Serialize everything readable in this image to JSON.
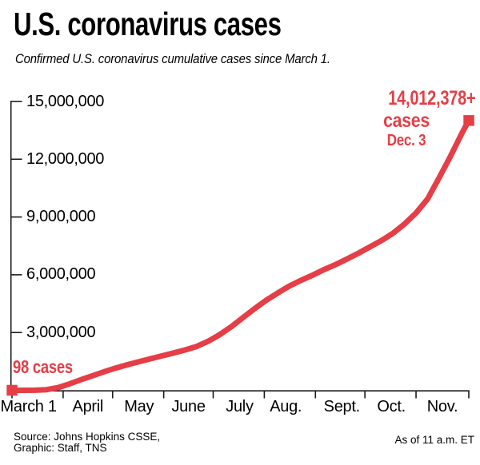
{
  "header": {
    "title": "U.S. coronavirus cases",
    "subtitle": "Confirmed U.S. coronavirus cumulative cases since March 1."
  },
  "chart_data": {
    "type": "line",
    "title": "U.S. coronavirus cases",
    "subtitle": "Confirmed U.S. coronavirus cumulative cases since March 1.",
    "line_color": "#E63E46",
    "axis_color": "#1A1A1A",
    "grid": false,
    "legend": "none",
    "ylim": [
      0,
      15000000
    ],
    "x_total_days": 277,
    "y_ticks": [
      {
        "value": 3000000,
        "label": "3,000,000"
      },
      {
        "value": 6000000,
        "label": "6,000,000"
      },
      {
        "value": 9000000,
        "label": "9,000,000"
      },
      {
        "value": 12000000,
        "label": "12,000,000"
      },
      {
        "value": 15000000,
        "label": "15,000,000"
      }
    ],
    "x_ticks": [
      {
        "label": "March 1",
        "tick_day": 0,
        "label_day": 10
      },
      {
        "label": "April",
        "tick_day": 31,
        "label_day": 46
      },
      {
        "label": "May",
        "tick_day": 61,
        "label_day": 77
      },
      {
        "label": "June",
        "tick_day": 92,
        "label_day": 107
      },
      {
        "label": "July",
        "tick_day": 122,
        "label_day": 138
      },
      {
        "label": "Aug.",
        "tick_day": 153,
        "label_day": 166
      },
      {
        "label": "Sept.",
        "tick_day": 184,
        "label_day": 200
      },
      {
        "label": "Oct.",
        "tick_day": 214,
        "label_day": 230
      },
      {
        "label": "Nov.",
        "tick_day": 245,
        "label_day": 261
      },
      {
        "label": "",
        "tick_day": 277,
        "label_day": null
      }
    ],
    "points": [
      {
        "date": "March 1",
        "day": 0,
        "cases": 98
      },
      {
        "date": "March 8",
        "day": 7,
        "cases": 518
      },
      {
        "date": "March 15",
        "day": 14,
        "cases": 3600
      },
      {
        "date": "March 22",
        "day": 21,
        "cases": 33300
      },
      {
        "date": "March 29",
        "day": 28,
        "cases": 140900
      },
      {
        "date": "April 5",
        "day": 35,
        "cases": 337600
      },
      {
        "date": "April 12",
        "day": 42,
        "cases": 555300
      },
      {
        "date": "April 19",
        "day": 49,
        "cases": 759800
      },
      {
        "date": "April 26",
        "day": 56,
        "cases": 965900
      },
      {
        "date": "May 3",
        "day": 63,
        "cases": 1158000
      },
      {
        "date": "May 10",
        "day": 70,
        "cases": 1329800
      },
      {
        "date": "May 17",
        "day": 77,
        "cases": 1486700
      },
      {
        "date": "May 24",
        "day": 84,
        "cases": 1640900
      },
      {
        "date": "May 31",
        "day": 91,
        "cases": 1790200
      },
      {
        "date": "June 7",
        "day": 98,
        "cases": 1938900
      },
      {
        "date": "June 14",
        "day": 105,
        "cases": 2094100
      },
      {
        "date": "June 21",
        "day": 112,
        "cases": 2279600
      },
      {
        "date": "June 28",
        "day": 119,
        "cases": 2549100
      },
      {
        "date": "July 5",
        "day": 126,
        "cases": 2891100
      },
      {
        "date": "July 12",
        "day": 133,
        "cases": 3304900
      },
      {
        "date": "July 19",
        "day": 140,
        "cases": 3773300
      },
      {
        "date": "July 26",
        "day": 147,
        "cases": 4234100
      },
      {
        "date": "Aug. 2",
        "day": 154,
        "cases": 4667900
      },
      {
        "date": "Aug. 9",
        "day": 161,
        "cases": 5044900
      },
      {
        "date": "Aug. 16",
        "day": 168,
        "cases": 5403200
      },
      {
        "date": "Aug. 23",
        "day": 175,
        "cases": 5701200
      },
      {
        "date": "Aug. 30",
        "day": 182,
        "cases": 5967800
      },
      {
        "date": "Sept. 6",
        "day": 189,
        "cases": 6263400
      },
      {
        "date": "Sept. 13",
        "day": 196,
        "cases": 6520600
      },
      {
        "date": "Sept. 20",
        "day": 203,
        "cases": 6812300
      },
      {
        "date": "Sept. 27",
        "day": 210,
        "cases": 7117900
      },
      {
        "date": "Oct. 4",
        "day": 217,
        "cases": 7444400
      },
      {
        "date": "Oct. 11",
        "day": 224,
        "cases": 7772200
      },
      {
        "date": "Oct. 18",
        "day": 231,
        "cases": 8154600
      },
      {
        "date": "Oct. 25",
        "day": 238,
        "cases": 8636200
      },
      {
        "date": "Nov. 1",
        "day": 245,
        "cases": 9207400
      },
      {
        "date": "Nov. 8",
        "day": 252,
        "cases": 9937300
      },
      {
        "date": "Nov. 15",
        "day": 259,
        "cases": 11036900
      },
      {
        "date": "Nov. 22",
        "day": 266,
        "cases": 12169200
      },
      {
        "date": "Nov. 29",
        "day": 273,
        "cases": 13384100
      },
      {
        "date": "Dec. 3",
        "day": 277,
        "cases": 14012378
      }
    ],
    "annotations": {
      "start_label": "98 cases",
      "end_value": "14,012,378+",
      "end_unit": "cases",
      "end_date": "Dec. 3"
    }
  },
  "footer": {
    "source_line1": "Source: Johns Hopkins CSSE,",
    "source_line2": "Graphic: Staff, TNS",
    "as_of": "As of 11 a.m. ET"
  }
}
